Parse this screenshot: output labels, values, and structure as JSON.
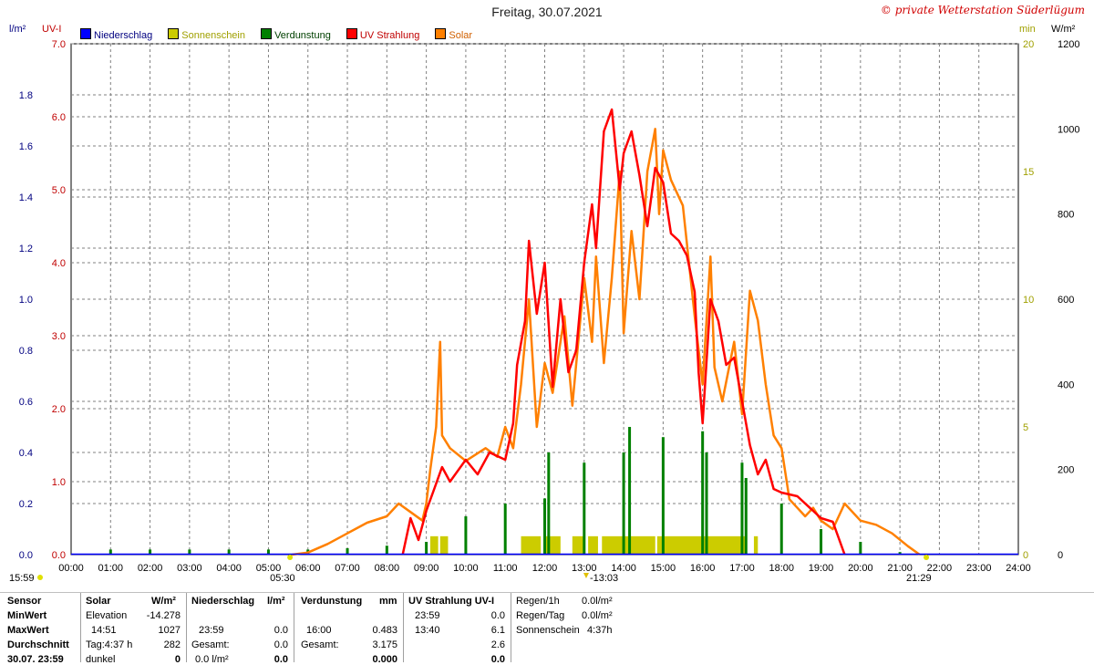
{
  "title": "Freitag, 30.07.2021",
  "copyright": "© private Wetterstation Süderlügum",
  "units": {
    "rain": "l/m²",
    "uv": "UV-I",
    "min": "min",
    "wm2": "W/m²"
  },
  "legend": [
    {
      "label": "Niederschlag",
      "color": "#0000ff",
      "text_color": "#000080"
    },
    {
      "label": "Sonnenschein",
      "color": "#cccc00",
      "text_color": "#a0a000"
    },
    {
      "label": "Verdunstung",
      "color": "#008000",
      "text_color": "#004000"
    },
    {
      "label": "UV Strahlung",
      "color": "#ff0000",
      "text_color": "#c00000"
    },
    {
      "label": "Solar",
      "color": "#ff8000",
      "text_color": "#d06000"
    }
  ],
  "chart_data": {
    "type": "line",
    "x_ticks": [
      "00:00",
      "01:00",
      "02:00",
      "03:00",
      "04:00",
      "05:00",
      "06:00",
      "07:00",
      "08:00",
      "09:00",
      "10:00",
      "11:00",
      "12:00",
      "13:00",
      "14:00",
      "15:00",
      "16:00",
      "17:00",
      "18:00",
      "19:00",
      "20:00",
      "21:00",
      "22:00",
      "23:00",
      "24:00"
    ],
    "axes": {
      "rain": {
        "ticks": [
          "0.0",
          "0.2",
          "0.4",
          "0.6",
          "0.8",
          "1.0",
          "1.2",
          "1.4",
          "1.6",
          "1.8"
        ],
        "range": [
          0,
          2.0
        ],
        "color": "#000080"
      },
      "uv": {
        "ticks": [
          "0.0",
          "1.0",
          "2.0",
          "3.0",
          "4.0",
          "5.0",
          "6.0",
          "7.0"
        ],
        "range": [
          0,
          7
        ],
        "color": "#c00000"
      },
      "min": {
        "ticks": [
          "0",
          "5",
          "10",
          "15",
          "20"
        ],
        "range": [
          0,
          20
        ],
        "color": "#a0a000"
      },
      "wm2": {
        "ticks": [
          "0",
          "200",
          "400",
          "600",
          "800",
          "1000",
          "1200"
        ],
        "range": [
          0,
          1200
        ],
        "color": "#000000"
      }
    },
    "markers": {
      "sunrise": "05:30",
      "noon": "13:03",
      "sunset": "21:29",
      "left_corner": "15:59"
    },
    "series": [
      {
        "name": "Solar",
        "color": "#ff8000",
        "axis": "wm2",
        "points": [
          [
            5.6,
            0
          ],
          [
            6.0,
            5
          ],
          [
            6.5,
            25
          ],
          [
            7.0,
            50
          ],
          [
            7.5,
            75
          ],
          [
            8.0,
            90
          ],
          [
            8.3,
            120
          ],
          [
            8.6,
            100
          ],
          [
            8.9,
            80
          ],
          [
            9.0,
            120
          ],
          [
            9.1,
            200
          ],
          [
            9.25,
            300
          ],
          [
            9.35,
            500
          ],
          [
            9.4,
            280
          ],
          [
            9.6,
            250
          ],
          [
            10.0,
            220
          ],
          [
            10.5,
            250
          ],
          [
            10.8,
            230
          ],
          [
            11.0,
            300
          ],
          [
            11.2,
            250
          ],
          [
            11.4,
            400
          ],
          [
            11.6,
            600
          ],
          [
            11.8,
            300
          ],
          [
            12.0,
            450
          ],
          [
            12.2,
            380
          ],
          [
            12.5,
            560
          ],
          [
            12.7,
            350
          ],
          [
            13.0,
            650
          ],
          [
            13.2,
            500
          ],
          [
            13.3,
            700
          ],
          [
            13.5,
            450
          ],
          [
            13.7,
            650
          ],
          [
            13.9,
            900
          ],
          [
            14.0,
            520
          ],
          [
            14.2,
            760
          ],
          [
            14.4,
            600
          ],
          [
            14.6,
            900
          ],
          [
            14.8,
            1000
          ],
          [
            14.9,
            800
          ],
          [
            15.0,
            950
          ],
          [
            15.2,
            880
          ],
          [
            15.5,
            820
          ],
          [
            15.8,
            560
          ],
          [
            16.0,
            400
          ],
          [
            16.2,
            700
          ],
          [
            16.3,
            440
          ],
          [
            16.5,
            360
          ],
          [
            16.8,
            500
          ],
          [
            17.0,
            330
          ],
          [
            17.2,
            620
          ],
          [
            17.4,
            550
          ],
          [
            17.6,
            400
          ],
          [
            17.8,
            280
          ],
          [
            18.0,
            250
          ],
          [
            18.2,
            130
          ],
          [
            18.4,
            110
          ],
          [
            18.6,
            90
          ],
          [
            18.8,
            110
          ],
          [
            19.0,
            80
          ],
          [
            19.3,
            60
          ],
          [
            19.6,
            120
          ],
          [
            20.0,
            80
          ],
          [
            20.4,
            70
          ],
          [
            20.8,
            50
          ],
          [
            21.2,
            20
          ],
          [
            21.5,
            0
          ]
        ]
      },
      {
        "name": "UV Strahlung",
        "color": "#ff0000",
        "axis": "uv",
        "points": [
          [
            8.4,
            0
          ],
          [
            8.6,
            0.5
          ],
          [
            8.8,
            0.2
          ],
          [
            9.0,
            0.6
          ],
          [
            9.2,
            0.9
          ],
          [
            9.4,
            1.2
          ],
          [
            9.6,
            1.0
          ],
          [
            10.0,
            1.3
          ],
          [
            10.3,
            1.1
          ],
          [
            10.6,
            1.4
          ],
          [
            11.0,
            1.3
          ],
          [
            11.2,
            1.8
          ],
          [
            11.3,
            2.6
          ],
          [
            11.5,
            3.2
          ],
          [
            11.6,
            4.3
          ],
          [
            11.8,
            3.3
          ],
          [
            12.0,
            4.0
          ],
          [
            12.2,
            2.3
          ],
          [
            12.4,
            3.5
          ],
          [
            12.6,
            2.5
          ],
          [
            12.8,
            2.8
          ],
          [
            13.0,
            4.0
          ],
          [
            13.2,
            4.8
          ],
          [
            13.3,
            4.2
          ],
          [
            13.5,
            5.8
          ],
          [
            13.7,
            6.1
          ],
          [
            13.9,
            5.0
          ],
          [
            14.0,
            5.5
          ],
          [
            14.2,
            5.8
          ],
          [
            14.4,
            5.2
          ],
          [
            14.6,
            4.5
          ],
          [
            14.8,
            5.3
          ],
          [
            15.0,
            5.1
          ],
          [
            15.2,
            4.4
          ],
          [
            15.4,
            4.3
          ],
          [
            15.6,
            4.1
          ],
          [
            15.8,
            3.6
          ],
          [
            15.9,
            2.5
          ],
          [
            16.0,
            1.8
          ],
          [
            16.2,
            3.5
          ],
          [
            16.4,
            3.2
          ],
          [
            16.6,
            2.6
          ],
          [
            16.8,
            2.7
          ],
          [
            17.0,
            2.1
          ],
          [
            17.2,
            1.5
          ],
          [
            17.4,
            1.1
          ],
          [
            17.6,
            1.3
          ],
          [
            17.8,
            0.9
          ],
          [
            18.0,
            0.85
          ],
          [
            18.4,
            0.8
          ],
          [
            18.8,
            0.6
          ],
          [
            19.0,
            0.5
          ],
          [
            19.3,
            0.45
          ],
          [
            19.6,
            0.0
          ]
        ]
      }
    ],
    "bars": [
      {
        "name": "Verdunstung",
        "color": "#008000",
        "axis": "rain",
        "points": [
          [
            1.0,
            0.02
          ],
          [
            2.0,
            0.02
          ],
          [
            3.0,
            0.02
          ],
          [
            4.0,
            0.02
          ],
          [
            5.0,
            0.02
          ],
          [
            6.0,
            0.02
          ],
          [
            7.0,
            0.025
          ],
          [
            8.0,
            0.035
          ],
          [
            9.0,
            0.05
          ],
          [
            10.0,
            0.15
          ],
          [
            11.0,
            0.2
          ],
          [
            12.0,
            0.22
          ],
          [
            12.1,
            0.4
          ],
          [
            13.0,
            0.36
          ],
          [
            14.0,
            0.4
          ],
          [
            14.15,
            0.5
          ],
          [
            15.0,
            0.46
          ],
          [
            16.0,
            0.483
          ],
          [
            16.1,
            0.4
          ],
          [
            17.0,
            0.36
          ],
          [
            17.1,
            0.3
          ],
          [
            18.0,
            0.2
          ],
          [
            19.0,
            0.1
          ],
          [
            20.0,
            0.05
          ],
          [
            21.0,
            0.01
          ]
        ]
      },
      {
        "name": "Sonnenschein",
        "color": "#cccc00",
        "axis": "min",
        "ranges": [
          [
            9.1,
            9.3
          ],
          [
            9.35,
            9.55
          ],
          [
            11.4,
            11.9
          ],
          [
            12.0,
            12.4
          ],
          [
            12.7,
            13.0
          ],
          [
            13.1,
            13.35
          ],
          [
            13.45,
            14.8
          ],
          [
            14.85,
            17.1
          ],
          [
            17.3,
            17.4
          ]
        ],
        "value": 0.72
      }
    ],
    "precipitation": {
      "name": "Niederschlag",
      "color": "#0000ff",
      "value": 0
    }
  },
  "stats": {
    "col1": {
      "header": "Sensor",
      "rows": [
        "MinWert",
        "MaxWert",
        "Durchschnitt",
        "30.07. 23:59"
      ]
    },
    "solar": {
      "header": "Solar",
      "unit": "W/m²",
      "rows": [
        [
          "Elevation",
          "-14.278"
        ],
        [
          "14:51",
          "1027"
        ],
        [
          "Tag:4:37 h",
          "282"
        ],
        [
          "dunkel",
          "0"
        ]
      ]
    },
    "rain": {
      "header": "Niederschlag",
      "unit": "l/m²",
      "rows": [
        [
          "",
          ""
        ],
        [
          "23:59",
          "0.0"
        ],
        [
          "Gesamt:",
          "0.0"
        ],
        [
          "0.0 l/m²",
          "0.0"
        ]
      ]
    },
    "evap": {
      "header": "Verdunstung",
      "unit": "mm",
      "rows": [
        [
          "",
          ""
        ],
        [
          "16:00",
          "0.483"
        ],
        [
          "Gesamt:",
          "3.175"
        ],
        [
          "",
          "0.000"
        ]
      ]
    },
    "uv": {
      "header": "UV Strahlung UV-I",
      "rows": [
        [
          "23:59",
          "0.0"
        ],
        [
          "13:40",
          "6.1"
        ],
        [
          "",
          "2.6"
        ],
        [
          "",
          "0.0"
        ]
      ]
    },
    "extra": {
      "rows": [
        [
          "Regen/1h",
          "0.0l/m²"
        ],
        [
          "Regen/Tag",
          "0.0l/m²"
        ],
        [
          "Sonnenschein",
          "4:37h"
        ]
      ]
    }
  }
}
